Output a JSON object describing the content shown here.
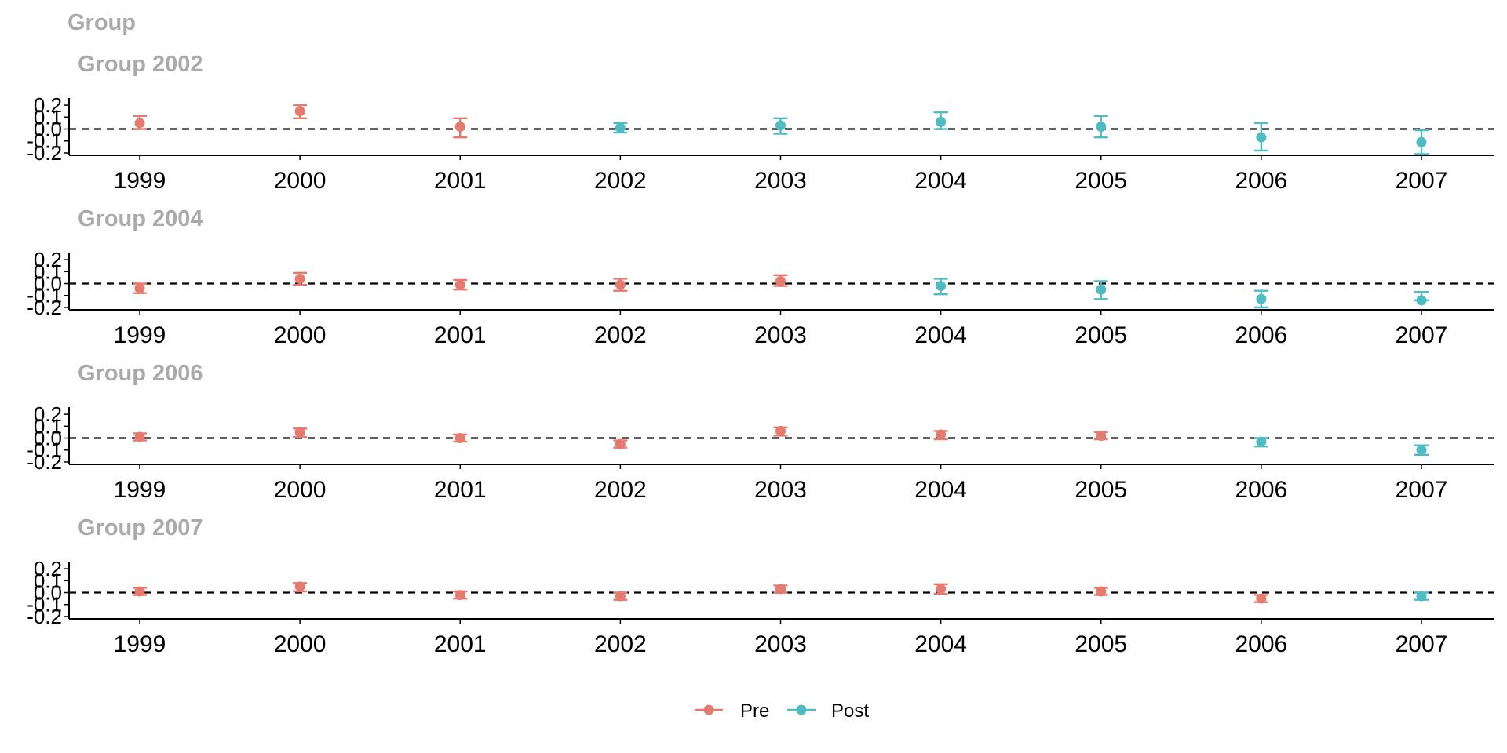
{
  "title": "Group",
  "colors": {
    "Pre": "#E57A6E",
    "Post": "#4FBCC2"
  },
  "legend": {
    "position": "bottom",
    "items": [
      "Pre",
      "Post"
    ]
  },
  "chart_data": [
    {
      "type": "scatter",
      "title": "Group 2002",
      "x": [
        1999,
        2000,
        2001,
        2002,
        2003,
        2004,
        2005,
        2006,
        2007
      ],
      "yticks": [
        -0.2,
        -0.1,
        0.0,
        0.1,
        0.2
      ],
      "ylim": [
        -0.22,
        0.24
      ],
      "reference_line": 0,
      "series": [
        {
          "name": "Pre",
          "x": [
            1999,
            2000,
            2001
          ],
          "y": [
            0.05,
            0.15,
            0.02
          ],
          "lo": [
            0.0,
            0.09,
            -0.07
          ],
          "hi": [
            0.11,
            0.2,
            0.09
          ]
        },
        {
          "name": "Post",
          "x": [
            2002,
            2003,
            2004,
            2005,
            2006,
            2007
          ],
          "y": [
            0.01,
            0.03,
            0.06,
            0.02,
            -0.07,
            -0.11
          ],
          "lo": [
            -0.03,
            -0.04,
            0.0,
            -0.07,
            -0.18,
            -0.21
          ],
          "hi": [
            0.05,
            0.09,
            0.14,
            0.11,
            0.05,
            -0.01
          ]
        }
      ]
    },
    {
      "type": "scatter",
      "title": "Group 2004",
      "x": [
        1999,
        2000,
        2001,
        2002,
        2003,
        2004,
        2005,
        2006,
        2007
      ],
      "yticks": [
        -0.2,
        -0.1,
        0.0,
        0.1,
        0.2
      ],
      "ylim": [
        -0.22,
        0.24
      ],
      "reference_line": 0,
      "series": [
        {
          "name": "Pre",
          "x": [
            1999,
            2000,
            2001,
            2002,
            2003
          ],
          "y": [
            -0.04,
            0.04,
            -0.01,
            -0.01,
            0.02
          ],
          "lo": [
            -0.08,
            -0.01,
            -0.05,
            -0.06,
            -0.02
          ],
          "hi": [
            0.0,
            0.09,
            0.03,
            0.04,
            0.07
          ]
        },
        {
          "name": "Post",
          "x": [
            2004,
            2005,
            2006,
            2007
          ],
          "y": [
            -0.02,
            -0.05,
            -0.13,
            -0.14
          ],
          "lo": [
            -0.09,
            -0.13,
            -0.2,
            -0.14
          ],
          "hi": [
            0.04,
            0.02,
            -0.06,
            -0.07
          ]
        }
      ]
    },
    {
      "type": "scatter",
      "title": "Group 2006",
      "x": [
        1999,
        2000,
        2001,
        2002,
        2003,
        2004,
        2005,
        2006,
        2007
      ],
      "yticks": [
        -0.2,
        -0.1,
        0.0,
        0.1,
        0.2
      ],
      "ylim": [
        -0.22,
        0.24
      ],
      "reference_line": 0,
      "series": [
        {
          "name": "Pre",
          "x": [
            1999,
            2000,
            2001,
            2002,
            2003,
            2004,
            2005
          ],
          "y": [
            0.01,
            0.05,
            0.0,
            -0.05,
            0.06,
            0.03,
            0.02
          ],
          "lo": [
            -0.02,
            0.01,
            -0.03,
            -0.08,
            0.02,
            -0.01,
            -0.01
          ],
          "hi": [
            0.04,
            0.08,
            0.03,
            -0.02,
            0.09,
            0.06,
            0.05
          ]
        },
        {
          "name": "Post",
          "x": [
            2006,
            2007
          ],
          "y": [
            -0.03,
            -0.1
          ],
          "lo": [
            -0.07,
            -0.14
          ],
          "hi": [
            0.0,
            -0.06
          ]
        }
      ]
    },
    {
      "type": "scatter",
      "title": "Group 2007",
      "x": [
        1999,
        2000,
        2001,
        2002,
        2003,
        2004,
        2005,
        2006,
        2007
      ],
      "yticks": [
        -0.2,
        -0.1,
        0.0,
        0.1,
        0.2
      ],
      "ylim": [
        -0.22,
        0.24
      ],
      "reference_line": 0,
      "series": [
        {
          "name": "Pre",
          "x": [
            1999,
            2000,
            2001,
            2002,
            2003,
            2004,
            2005,
            2006
          ],
          "y": [
            0.01,
            0.05,
            -0.02,
            -0.03,
            0.03,
            0.03,
            0.01,
            -0.05
          ],
          "lo": [
            -0.02,
            0.01,
            -0.05,
            -0.06,
            0.0,
            -0.01,
            -0.02,
            -0.08
          ],
          "hi": [
            0.04,
            0.08,
            0.01,
            0.0,
            0.06,
            0.07,
            0.04,
            -0.02
          ]
        },
        {
          "name": "Post",
          "x": [
            2007
          ],
          "y": [
            -0.03
          ],
          "lo": [
            -0.06
          ],
          "hi": [
            0.0
          ]
        }
      ]
    }
  ]
}
